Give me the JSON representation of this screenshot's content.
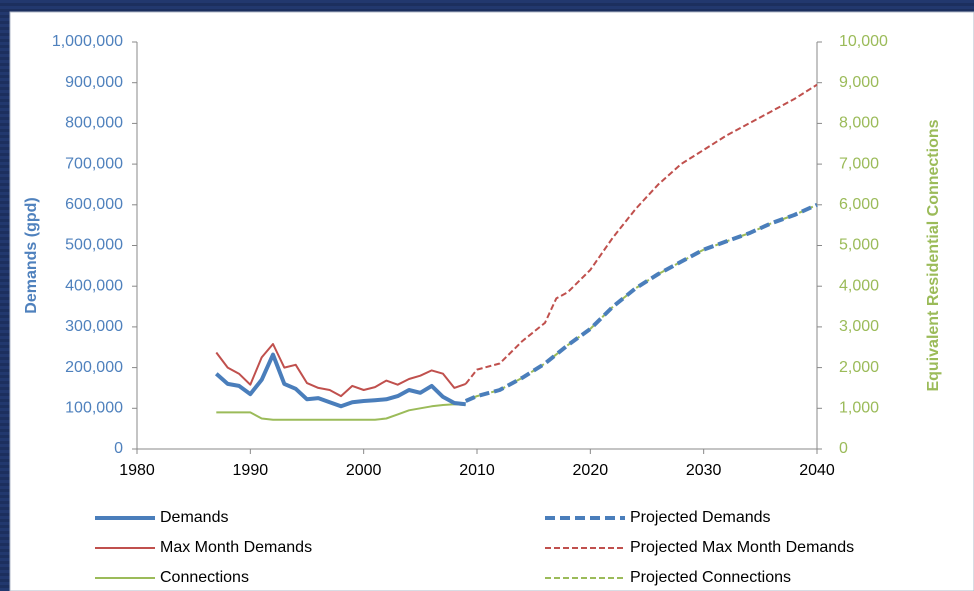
{
  "chart_data": {
    "type": "line",
    "y_label": "Demands (gpd)",
    "y2_label": "Equivalent Residential Connections",
    "xlim": [
      1980,
      2040
    ],
    "xticks": [
      1980,
      1990,
      2000,
      2010,
      2020,
      2030,
      2040
    ],
    "ylim": [
      0,
      1000000
    ],
    "yticks": [
      0,
      {
        "value": 100000,
        "label": "100,000"
      },
      {
        "value": 200000,
        "label": "200,000"
      },
      {
        "value": 300000,
        "label": "300,000"
      },
      {
        "value": 400000,
        "label": "400,000"
      },
      {
        "value": 500000,
        "label": "500,000"
      },
      {
        "value": 600000,
        "label": "600,000"
      },
      {
        "value": 700000,
        "label": "700,000"
      },
      {
        "value": 800000,
        "label": "800,000"
      },
      {
        "value": 900000,
        "label": "900,000"
      },
      {
        "value": 1000000,
        "label": "1,000,000"
      }
    ],
    "y2lim": [
      0,
      10000
    ],
    "y2ticks": [
      0,
      {
        "value": 1000,
        "label": "1,000"
      },
      {
        "value": 2000,
        "label": "2,000"
      },
      {
        "value": 3000,
        "label": "3,000"
      },
      {
        "value": 4000,
        "label": "4,000"
      },
      {
        "value": 5000,
        "label": "5,000"
      },
      {
        "value": 6000,
        "label": "6,000"
      },
      {
        "value": 7000,
        "label": "7,000"
      },
      {
        "value": 8000,
        "label": "8,000"
      },
      {
        "value": 9000,
        "label": "9,000"
      },
      {
        "value": 10000,
        "label": "10,000"
      }
    ],
    "y_color": "#4f81bd",
    "y2_color": "#9bbb59",
    "series": [
      {
        "name": "Demands",
        "color": "#4a7ebb",
        "width": 4,
        "dashed": false,
        "x": [
          1987,
          1988,
          1989,
          1990,
          1991,
          1992,
          1993,
          1994,
          1995,
          1996,
          1997,
          1998,
          1999,
          2000,
          2001,
          2002,
          2003,
          2004,
          2005,
          2006,
          2007,
          2008,
          2009
        ],
        "values": [
          185000,
          160000,
          155000,
          135000,
          170000,
          232000,
          160000,
          148000,
          122000,
          125000,
          115000,
          105000,
          115000,
          118000,
          120000,
          122000,
          130000,
          145000,
          138000,
          155000,
          128000,
          113000,
          110000
        ]
      },
      {
        "name": "Projected Demands",
        "color": "#4a7ebb",
        "width": 4,
        "dashed": true,
        "x": [
          2009,
          2010,
          2012,
          2014,
          2016,
          2018,
          2020,
          2022,
          2024,
          2026,
          2028,
          2030,
          2032,
          2034,
          2036,
          2038,
          2040
        ],
        "values": [
          118000,
          130000,
          145000,
          175000,
          210000,
          255000,
          295000,
          350000,
          395000,
          430000,
          460000,
          490000,
          510000,
          530000,
          555000,
          575000,
          600000
        ]
      },
      {
        "name": "Max Month Demands",
        "color": "#c0504d",
        "width": 2,
        "dashed": false,
        "x": [
          1987,
          1988,
          1989,
          1990,
          1991,
          1992,
          1993,
          1994,
          1995,
          1996,
          1997,
          1998,
          1999,
          2000,
          2001,
          2002,
          2003,
          2004,
          2005,
          2006,
          2007,
          2008,
          2009
        ],
        "values": [
          237000,
          200000,
          185000,
          158000,
          225000,
          258000,
          200000,
          207000,
          162000,
          150000,
          145000,
          130000,
          155000,
          145000,
          152000,
          168000,
          158000,
          172000,
          180000,
          193000,
          185000,
          150000,
          160000
        ]
      },
      {
        "name": "Projected Max Month Demands",
        "color": "#c0504d",
        "width": 2,
        "dashed": true,
        "x": [
          2009,
          2010,
          2012,
          2014,
          2016,
          2017,
          2018,
          2020,
          2022,
          2024,
          2026,
          2028,
          2030,
          2032,
          2034,
          2036,
          2038,
          2040
        ],
        "values": [
          160000,
          195000,
          210000,
          265000,
          310000,
          370000,
          385000,
          440000,
          520000,
          590000,
          650000,
          700000,
          735000,
          770000,
          800000,
          830000,
          860000,
          895000
        ]
      },
      {
        "name": "Connections",
        "color": "#9bbb59",
        "width": 2,
        "dashed": false,
        "axis": "y2",
        "x": [
          1987,
          1988,
          1989,
          1990,
          1991,
          1992,
          1993,
          1994,
          1995,
          1996,
          1997,
          1998,
          1999,
          2000,
          2001,
          2002,
          2003,
          2004,
          2005,
          2006,
          2007,
          2008,
          2009
        ],
        "values": [
          900,
          900,
          900,
          900,
          750,
          720,
          720,
          720,
          720,
          720,
          720,
          720,
          720,
          720,
          720,
          750,
          850,
          950,
          1000,
          1050,
          1080,
          1100,
          1080
        ]
      },
      {
        "name": "Projected Connections",
        "color": "#9bbb59",
        "width": 2,
        "dashed": true,
        "axis": "y2",
        "x": [
          2009,
          2010,
          2012,
          2014,
          2016,
          2018,
          2020,
          2022,
          2024,
          2026,
          2028,
          2030,
          2032,
          2034,
          2036,
          2038,
          2040
        ],
        "values": [
          1180,
          1300,
          1450,
          1750,
          2100,
          2550,
          2950,
          3500,
          3950,
          4300,
          4600,
          4900,
          5100,
          5300,
          5550,
          5750,
          6000
        ]
      }
    ]
  }
}
